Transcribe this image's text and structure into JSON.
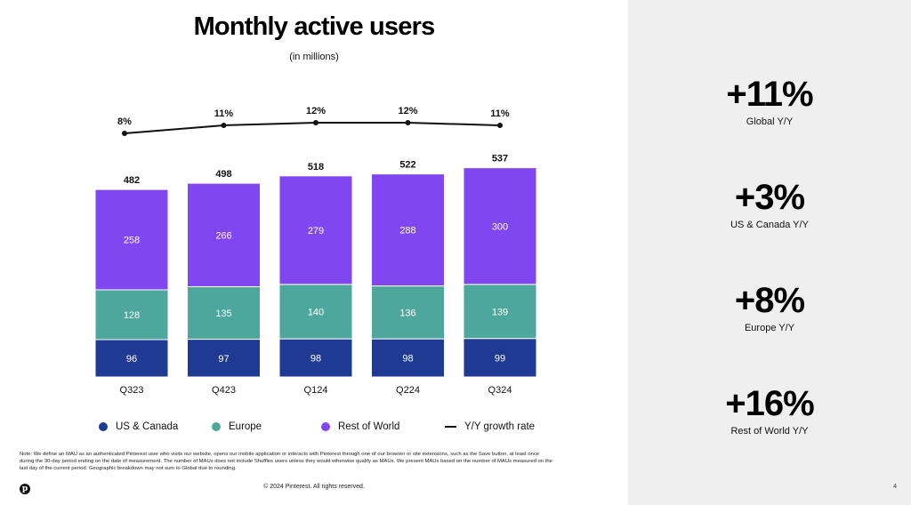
{
  "chart_data": {
    "type": "bar",
    "stacked": true,
    "title": "Monthly active users",
    "subtitle": "(in millions)",
    "categories": [
      "Q323",
      "Q423",
      "Q124",
      "Q224",
      "Q324"
    ],
    "series": [
      {
        "name": "US & Canada",
        "values": [
          96,
          97,
          98,
          98,
          99
        ],
        "color": "#1f3a93"
      },
      {
        "name": "Europe",
        "values": [
          128,
          135,
          140,
          136,
          139
        ],
        "color": "#4ea79c"
      },
      {
        "name": "Rest of World",
        "values": [
          258,
          266,
          279,
          288,
          300
        ],
        "color": "#8047f0"
      }
    ],
    "totals": [
      482,
      498,
      518,
      522,
      537
    ],
    "line_series": {
      "name": "Y/Y growth rate",
      "values": [
        8,
        11,
        12,
        12,
        11
      ],
      "labels": [
        "8%",
        "11%",
        "12%",
        "12%",
        "11%"
      ],
      "color": "#111111"
    },
    "ylim": [
      0,
      560
    ],
    "grid": false,
    "legend_position": "bottom"
  },
  "legend": {
    "us": "US & Canada",
    "europe": "Europe",
    "row": "Rest of World",
    "growth": "Y/Y growth rate"
  },
  "note": "Note: We define an MAU as an authenticated Pinterest user who visits our website, opens our mobile application or interacts with Pinterest through one of our browser or site extensions, such as the Save button, at least once during the 30-day period ending on the date of measurement. The number of MAUs does not include Shuffles users unless they would otherwise qualify as MAUs. We present MAUs based on the number of MAUs measured on the last day of the current period. Geographic breakdown may not sum to Global due to rounding.",
  "footer": {
    "copyright": "© 2024 Pinterest. All rights reserved.",
    "page_number": "4",
    "logo_glyph": "p"
  },
  "stats": [
    {
      "value": "+11%",
      "label": "Global Y/Y"
    },
    {
      "value": "+3%",
      "label": "US & Canada Y/Y"
    },
    {
      "value": "+8%",
      "label": "Europe Y/Y"
    },
    {
      "value": "+16%",
      "label": "Rest of World Y/Y"
    }
  ]
}
